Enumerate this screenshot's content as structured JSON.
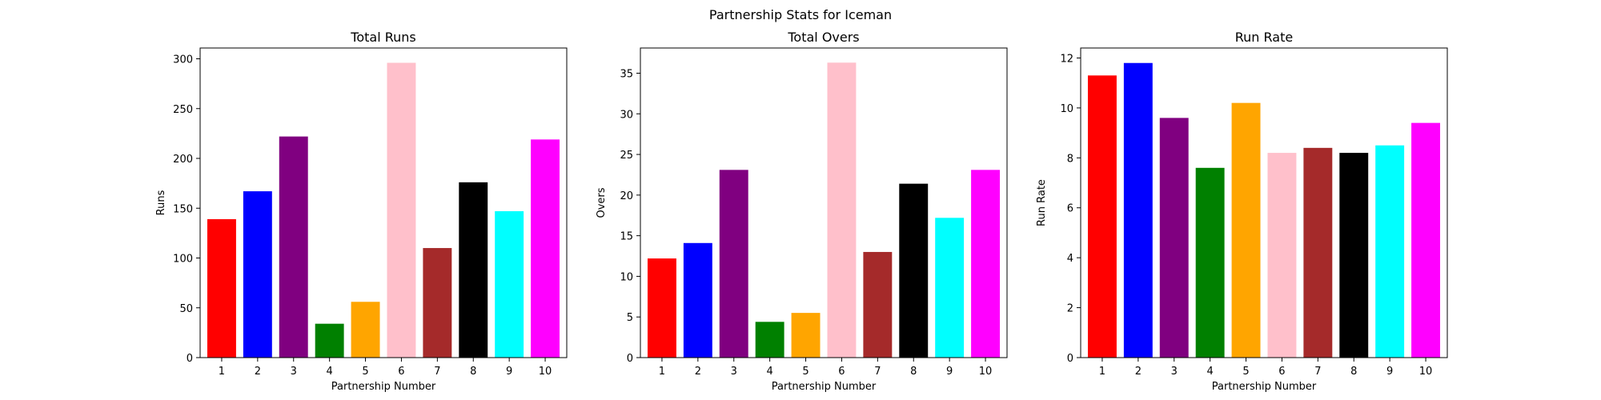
{
  "figure": {
    "suptitle": "Partnership Stats for Iceman",
    "background": "#ffffff"
  },
  "chart_data": [
    {
      "type": "bar",
      "title": "Total Runs",
      "xlabel": "Partnership Number",
      "ylabel": "Runs",
      "categories": [
        "1",
        "2",
        "3",
        "4",
        "5",
        "6",
        "7",
        "8",
        "9",
        "10"
      ],
      "values": [
        139,
        167,
        222,
        34,
        56,
        296,
        110,
        176,
        147,
        219
      ],
      "colors": [
        "#ff0000",
        "#0000ff",
        "#800080",
        "#008000",
        "#ffa500",
        "#ffc0cb",
        "#a52a2a",
        "#000000",
        "#00ffff",
        "#ff00ff"
      ],
      "ylim": [
        0,
        310.85
      ],
      "yticks": [
        0,
        50,
        100,
        150,
        200,
        250,
        300
      ],
      "grid": false
    },
    {
      "type": "bar",
      "title": "Total Overs",
      "xlabel": "Partnership Number",
      "ylabel": "Overs",
      "categories": [
        "1",
        "2",
        "3",
        "4",
        "5",
        "6",
        "7",
        "8",
        "9",
        "10"
      ],
      "values": [
        12.2,
        14.1,
        23.1,
        4.4,
        5.5,
        36.3,
        13.0,
        21.4,
        17.2,
        23.1
      ],
      "colors": [
        "#ff0000",
        "#0000ff",
        "#800080",
        "#008000",
        "#ffa500",
        "#ffc0cb",
        "#a52a2a",
        "#000000",
        "#00ffff",
        "#ff00ff"
      ],
      "ylim": [
        0,
        38.1
      ],
      "yticks": [
        0,
        5,
        10,
        15,
        20,
        25,
        30,
        35
      ],
      "grid": false
    },
    {
      "type": "bar",
      "title": "Run Rate",
      "xlabel": "Partnership Number",
      "ylabel": "Run Rate",
      "categories": [
        "1",
        "2",
        "3",
        "4",
        "5",
        "6",
        "7",
        "8",
        "9",
        "10"
      ],
      "values": [
        11.3,
        11.8,
        9.6,
        7.6,
        10.2,
        8.2,
        8.4,
        8.2,
        8.5,
        9.4
      ],
      "colors": [
        "#ff0000",
        "#0000ff",
        "#800080",
        "#008000",
        "#ffa500",
        "#ffc0cb",
        "#a52a2a",
        "#000000",
        "#00ffff",
        "#ff00ff"
      ],
      "ylim": [
        0,
        12.4
      ],
      "yticks": [
        0,
        2,
        4,
        6,
        8,
        10,
        12
      ],
      "grid": false
    }
  ]
}
